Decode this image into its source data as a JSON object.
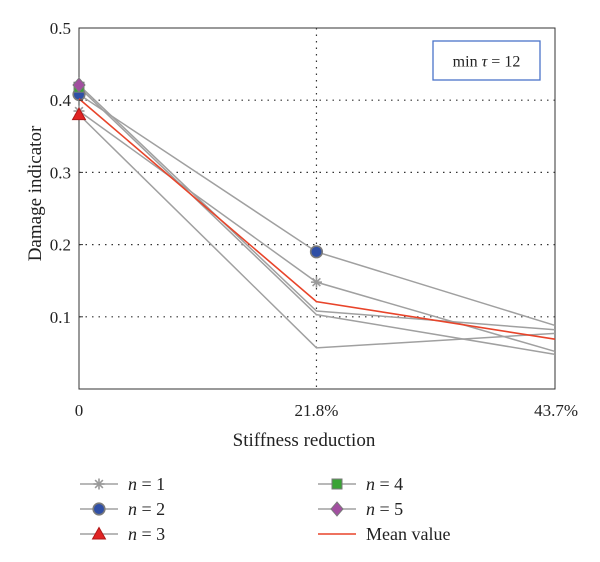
{
  "chart_data": {
    "type": "line",
    "x": [
      0,
      21.8,
      43.7
    ],
    "x_tick_labels": [
      "0",
      "21.8%",
      "43.7%"
    ],
    "xlabel": "Stiffness reduction",
    "ylabel": "Damage indicator",
    "ylim": [
      0,
      0.5
    ],
    "y_ticks": [
      0.1,
      0.2,
      0.3,
      0.4,
      0.5
    ],
    "y_tick_labels": [
      "0.1",
      "0.2",
      "0.3",
      "0.4",
      "0.5"
    ],
    "grid": "dotted",
    "annotation": {
      "prefix": "min ",
      "symbol": "τ",
      "suffix": " = 12",
      "border_color": "#4a74c9"
    },
    "legend_position": "below",
    "series": [
      {
        "name_var": "n",
        "name_value": " = 1",
        "values": [
          0.385,
          0.148,
          0.052
        ],
        "line_color": "#a0a0a0",
        "marker": "asterisk",
        "marker_color": "#9a9a9a"
      },
      {
        "name_var": "n",
        "name_value": " = 2",
        "values": [
          0.408,
          0.19,
          0.088
        ],
        "line_color": "#a0a0a0",
        "marker": "circle",
        "marker_color": "#2f4fa6"
      },
      {
        "name_var": "n",
        "name_value": " = 3",
        "values": [
          0.38,
          0.057,
          0.077
        ],
        "line_color": "#a0a0a0",
        "marker": "triangle",
        "marker_color": "#e02424"
      },
      {
        "name_var": "n",
        "name_value": " = 4",
        "values": [
          0.418,
          0.103,
          0.048
        ],
        "line_color": "#a0a0a0",
        "marker": "square",
        "marker_color": "#3aa335"
      },
      {
        "name_var": "n",
        "name_value": " = 5",
        "values": [
          0.421,
          0.108,
          0.082
        ],
        "line_color": "#a0a0a0",
        "marker": "diamond",
        "marker_color": "#a24fa0"
      },
      {
        "name": "Mean value",
        "values": [
          0.402,
          0.121,
          0.069
        ],
        "line_color": "#e8442a",
        "marker": "none"
      }
    ]
  }
}
